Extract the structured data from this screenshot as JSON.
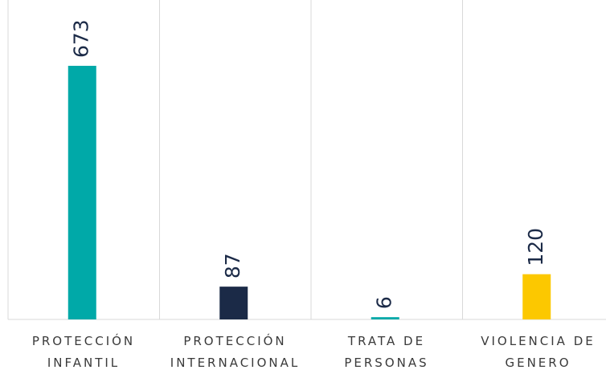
{
  "chart_data": {
    "type": "bar",
    "categories": [
      "PROTECCIÓN INFANTIL",
      "PROTECCIÓN INTERNACIONAL",
      "TRATA DE PERSONAS",
      "VIOLENCIA DE GENERO"
    ],
    "values": [
      673,
      87,
      6,
      120
    ],
    "colors": [
      "#00a9a8",
      "#1b2a47",
      "#00a9a8",
      "#fcc800"
    ]
  }
}
